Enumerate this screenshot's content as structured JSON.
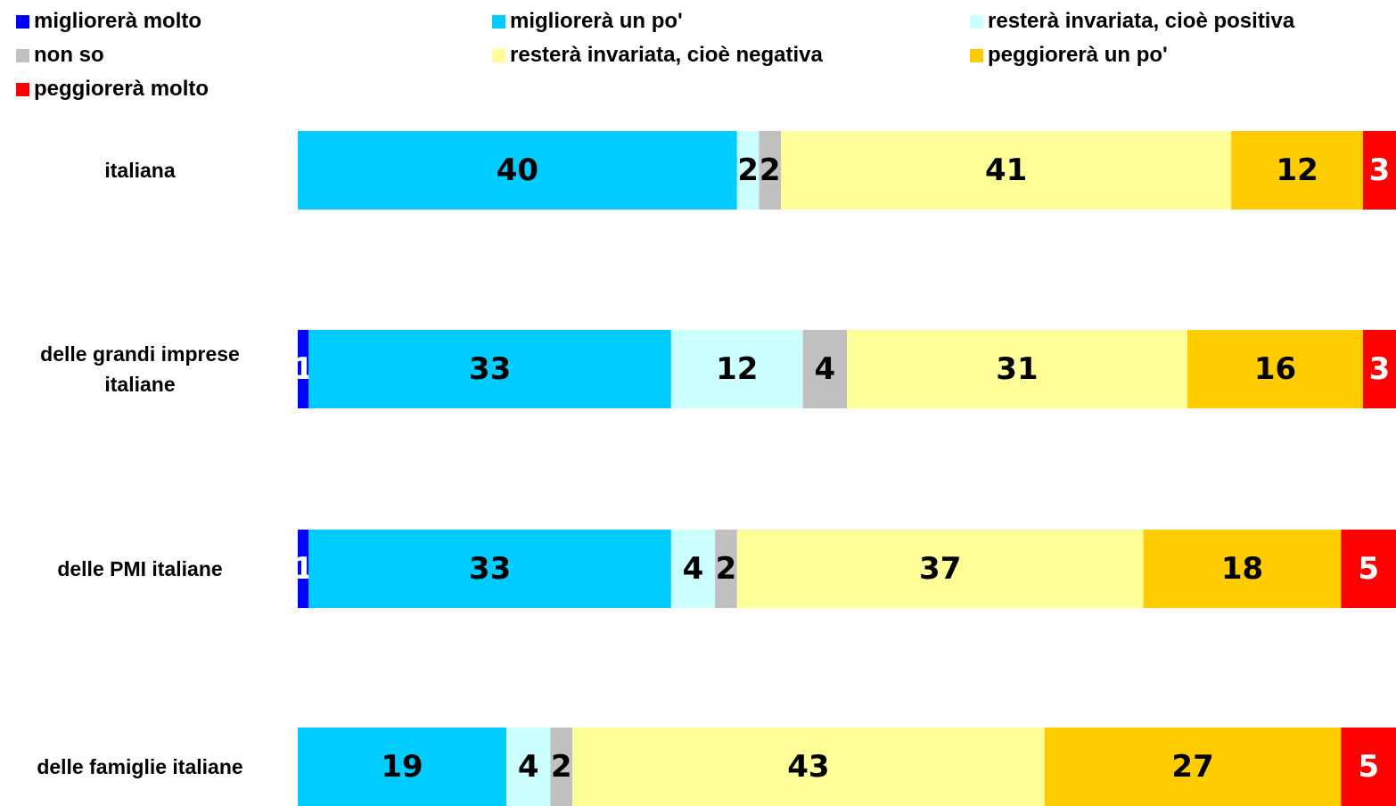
{
  "chart_data": {
    "type": "stacked-bar-horizontal",
    "categories": [
      "italiana",
      "delle grandi imprese italiane",
      "delle PMI italiane",
      "delle famiglie italiane"
    ],
    "series": [
      {
        "name": "migliorerà molto",
        "color": "#0000ff",
        "label_color": "#ffffff",
        "values": [
          null,
          1,
          1,
          null
        ]
      },
      {
        "name": "migliorerà un po'",
        "color": "#00ccff",
        "label_color": "#000000",
        "values": [
          40,
          33,
          33,
          19
        ]
      },
      {
        "name": "resterà invariata, cioè positiva",
        "color": "#ccffff",
        "label_color": "#000000",
        "values": [
          2,
          12,
          4,
          4
        ]
      },
      {
        "name": "non so",
        "color": "#c0c0c0",
        "label_color": "#000000",
        "values": [
          2,
          4,
          2,
          2
        ]
      },
      {
        "name": "resterà invariata, cioè negativa",
        "color": "#ffff99",
        "label_color": "#000000",
        "values": [
          41,
          31,
          37,
          43
        ]
      },
      {
        "name": "peggiorerà un po'",
        "color": "#ffcc00",
        "label_color": "#000000",
        "values": [
          12,
          16,
          18,
          27
        ]
      },
      {
        "name": "peggiorerà molto",
        "color": "#ff0000",
        "label_color": "#ffffff",
        "values": [
          3,
          3,
          5,
          5
        ]
      }
    ],
    "legend": "top"
  }
}
